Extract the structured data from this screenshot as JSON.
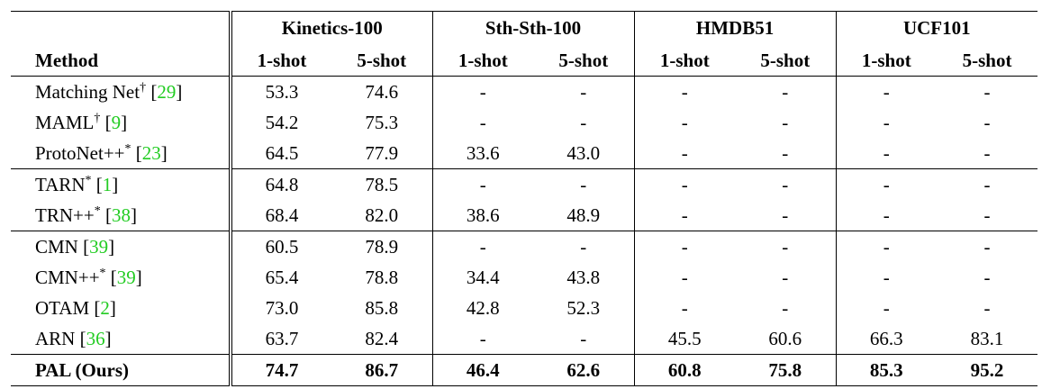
{
  "table": {
    "method_header": "Method",
    "group_header": [
      "Kinetics-100",
      "Sth-Sth-100",
      "HMDB51",
      "UCF101"
    ],
    "sub_header": [
      "1-shot",
      "5-shot",
      "1-shot",
      "5-shot",
      "1-shot",
      "5-shot",
      "1-shot",
      "5-shot"
    ],
    "sections": [
      {
        "bold": false,
        "rows": [
          {
            "method": "Matching Net",
            "mark": "†",
            "ref": "29",
            "cells": [
              "53.3",
              "74.6",
              "-",
              "-",
              "-",
              "-",
              "-",
              "-"
            ]
          },
          {
            "method": "MAML",
            "mark": "†",
            "ref": "9",
            "cells": [
              "54.2",
              "75.3",
              "-",
              "-",
              "-",
              "-",
              "-",
              "-"
            ]
          },
          {
            "method": "ProtoNet++",
            "mark": "*",
            "ref": "23",
            "cells": [
              "64.5",
              "77.9",
              "33.6",
              "43.0",
              "-",
              "-",
              "-",
              "-"
            ]
          }
        ]
      },
      {
        "bold": false,
        "rows": [
          {
            "method": "TARN",
            "mark": "*",
            "ref": "1",
            "cells": [
              "64.8",
              "78.5",
              "-",
              "-",
              "-",
              "-",
              "-",
              "-"
            ]
          },
          {
            "method": "TRN++",
            "mark": "*",
            "ref": "38",
            "cells": [
              "68.4",
              "82.0",
              "38.6",
              "48.9",
              "-",
              "-",
              "-",
              "-"
            ]
          }
        ]
      },
      {
        "bold": false,
        "rows": [
          {
            "method": "CMN",
            "ref": "39",
            "cells": [
              "60.5",
              "78.9",
              "-",
              "-",
              "-",
              "-",
              "-",
              "-"
            ]
          },
          {
            "method": "CMN++",
            "mark": "*",
            "ref": "39",
            "cells": [
              "65.4",
              "78.8",
              "34.4",
              "43.8",
              "-",
              "-",
              "-",
              "-"
            ]
          },
          {
            "method": "OTAM",
            "ref": "2",
            "cells": [
              "73.0",
              "85.8",
              "42.8",
              "52.3",
              "-",
              "-",
              "-",
              "-"
            ]
          },
          {
            "method": "ARN",
            "ref": "36",
            "cells": [
              "63.7",
              "82.4",
              "-",
              "-",
              "45.5",
              "60.6",
              "66.3",
              "83.1"
            ]
          }
        ]
      },
      {
        "bold": true,
        "rows": [
          {
            "method": "PAL (Ours)",
            "cells": [
              "74.7",
              "86.7",
              "46.4",
              "62.6",
              "60.8",
              "75.8",
              "85.3",
              "95.2"
            ]
          }
        ]
      }
    ]
  }
}
